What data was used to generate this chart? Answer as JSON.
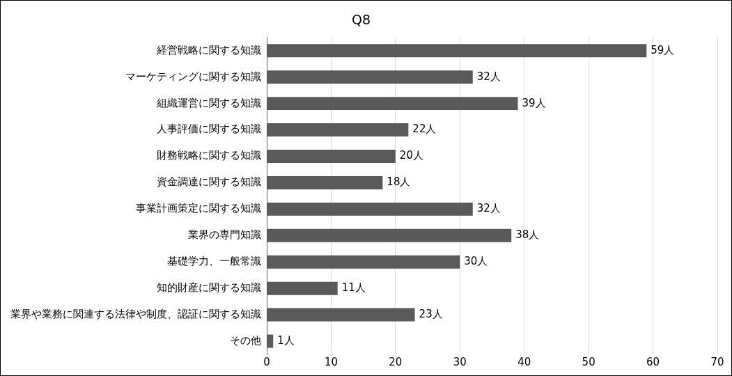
{
  "chart_data": {
    "type": "bar",
    "orientation": "horizontal",
    "title": "Q8",
    "categories": [
      "経営戦略に関する知識",
      "マーケティングに関する知識",
      "組織運営に関する知識",
      "人事評価に関する知識",
      "財務戦略に関する知識",
      "資金調達に関する知識",
      "事業計画策定に関する知識",
      "業界の専門知識",
      "基礎学力、一般常識",
      "知的財産に関する知識",
      "業界や業務に関連する法律や制度、認証に関する知識",
      "その他"
    ],
    "values": [
      59,
      32,
      39,
      22,
      20,
      18,
      32,
      38,
      30,
      11,
      23,
      1
    ],
    "value_labels": [
      "59人",
      "32人",
      "39人",
      "22人",
      "20人",
      "18人",
      "32人",
      "38人",
      "30人",
      "11人",
      "23人",
      "1人"
    ],
    "color": "#595959",
    "xlim": [
      0,
      70
    ],
    "xticks": [
      0,
      10,
      20,
      30,
      40,
      50,
      60,
      70
    ],
    "grid": "x",
    "legend": false
  }
}
